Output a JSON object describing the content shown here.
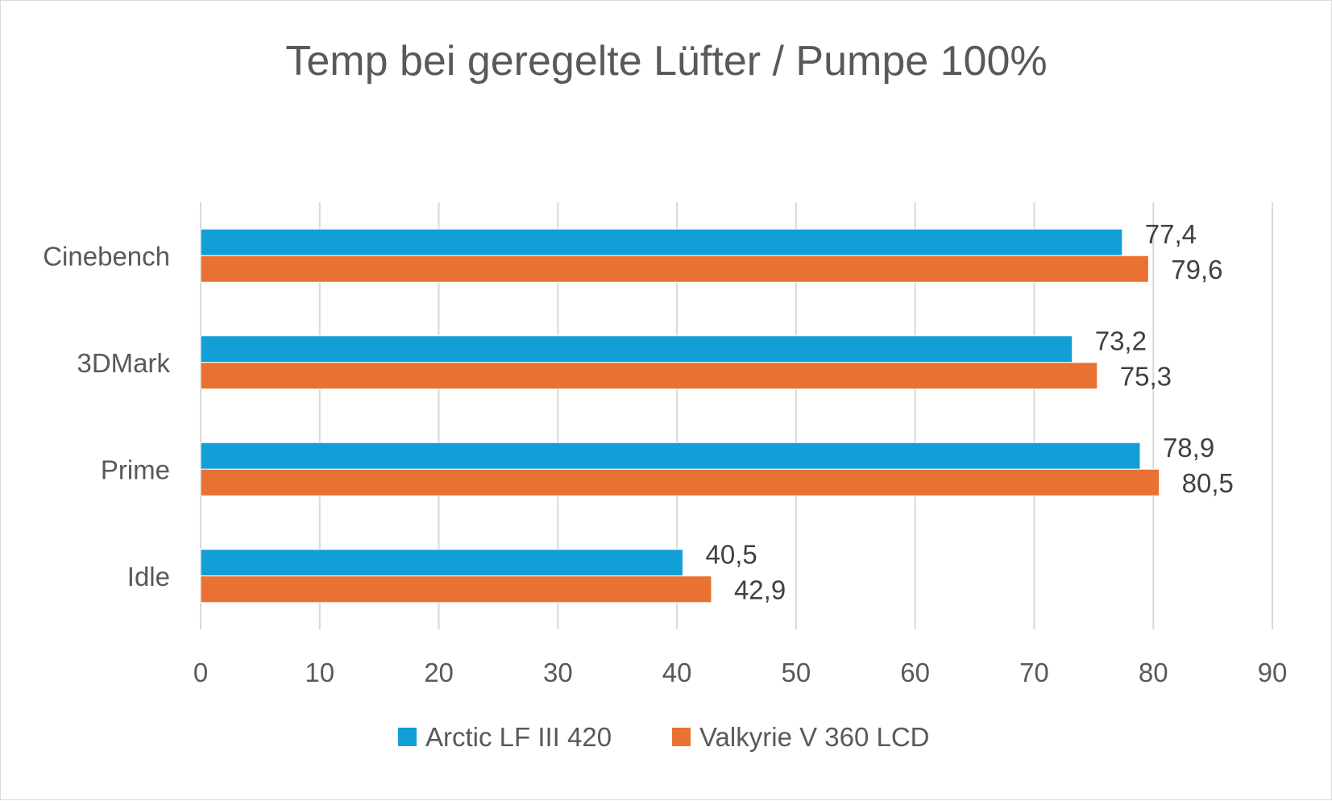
{
  "chart_data": {
    "type": "bar",
    "orientation": "horizontal",
    "title": "Temp bei geregelte Lüfter / Pumpe 100%",
    "categories": [
      "Cinebench",
      "3DMark",
      "Prime",
      "Idle"
    ],
    "series": [
      {
        "name": "Arctic LF III 420",
        "color": "#129fd8",
        "values": [
          77.4,
          73.2,
          78.9,
          40.5
        ],
        "labels": [
          "77,4",
          "73,2",
          "78,9",
          "40,5"
        ]
      },
      {
        "name": "Valkyrie V 360 LCD",
        "color": "#e97132",
        "values": [
          79.6,
          75.3,
          80.5,
          42.9
        ],
        "labels": [
          "79,6",
          "75,3",
          "80,5",
          "42,9"
        ]
      }
    ],
    "xlim": [
      0,
      90
    ],
    "ticks": [
      0,
      10,
      20,
      30,
      40,
      50,
      60,
      70,
      80,
      90
    ],
    "tick_labels": [
      "0",
      "10",
      "20",
      "30",
      "40",
      "50",
      "60",
      "70",
      "80",
      "90"
    ],
    "xlabel": "",
    "ylabel": "",
    "grid": true,
    "legend_position": "bottom"
  }
}
